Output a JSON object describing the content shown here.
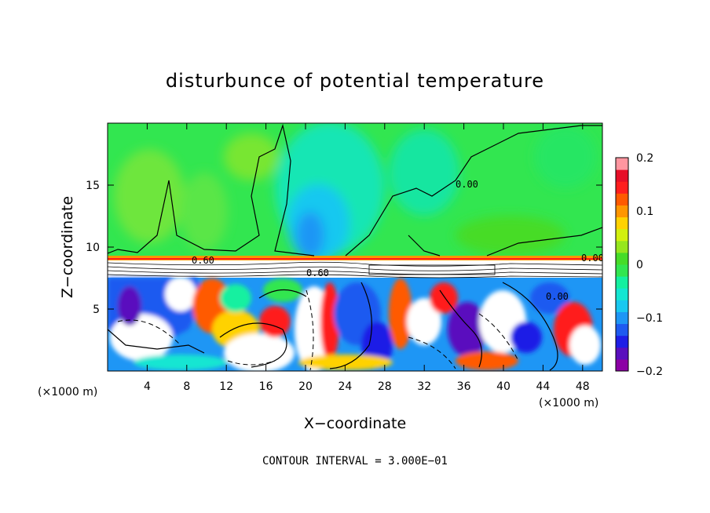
{
  "chart_data": {
    "type": "heatmap",
    "title": "disturbunce of potential temperature",
    "xlabel": "X−coordinate",
    "ylabel": "Z−coordinate",
    "x_unit_left": "(×1000 m)",
    "x_unit_right": "(×1000 m)",
    "x_range": [
      0,
      50
    ],
    "y_range": [
      0,
      20
    ],
    "x_ticks": [
      4,
      8,
      12,
      16,
      20,
      24,
      28,
      32,
      36,
      40,
      44,
      48
    ],
    "x_tick_labels": [
      "4",
      "8",
      "12",
      "16",
      "20",
      "24",
      "28",
      "32",
      "36",
      "40",
      "44",
      "48"
    ],
    "y_ticks": [
      5,
      10,
      15
    ],
    "y_tick_labels": [
      "5",
      "10",
      "15"
    ],
    "colorbar": {
      "range": [
        -0.2,
        0.2
      ],
      "tick_labels": [
        "0.2",
        "0.1",
        "0",
        "−0.1",
        "−0.2"
      ],
      "tick_values": [
        0.2,
        0.1,
        0,
        -0.1,
        -0.2
      ],
      "colors": [
        "#8c00a5",
        "#5a0fbe",
        "#1e1ee6",
        "#1e5af0",
        "#1e96f5",
        "#19c8f0",
        "#14e6d2",
        "#14f0a0",
        "#32e650",
        "#46dc28",
        "#96e61e",
        "#d2f00f",
        "#ffd200",
        "#ff9600",
        "#ff5a00",
        "#ff1e1e",
        "#e60f28",
        "#ff96a0"
      ]
    },
    "contour_labels": [
      "0.60",
      "0.00",
      "0.00",
      "0.60",
      "0.00"
    ],
    "annotation": "CONTOUR INTERVAL = 3.000E−01"
  }
}
